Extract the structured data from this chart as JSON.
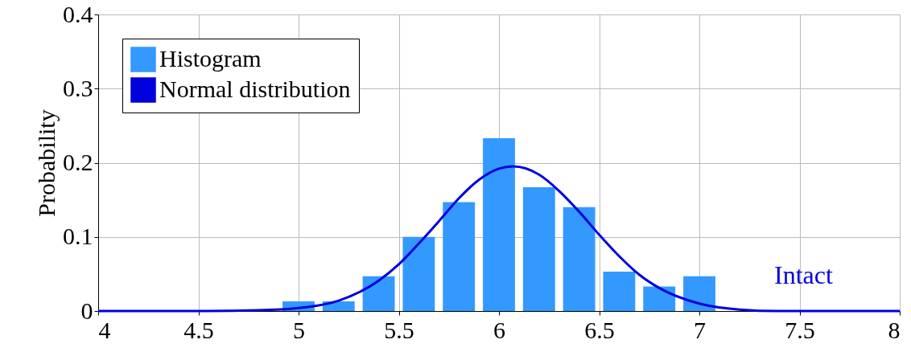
{
  "chart_data": {
    "type": "histogram",
    "ylabel": "Probability",
    "bins": [
      4.92,
      5.08,
      5.12,
      5.28,
      5.32,
      5.48,
      5.52,
      5.68,
      5.72,
      5.88,
      5.92,
      6.08,
      6.12,
      6.28,
      6.32,
      6.48,
      6.52,
      6.68,
      6.72,
      6.88,
      6.92,
      7.08
    ],
    "series": [
      {
        "name": "Histogram",
        "color": "#3399ff",
        "values": [
          0.013,
          null,
          0.013,
          null,
          0.047,
          null,
          0.1,
          null,
          0.147,
          null,
          0.233,
          null,
          0.167,
          null,
          0.14,
          null,
          0.053,
          null,
          0.033,
          null,
          0.047
        ]
      },
      {
        "name": "Normal distribution",
        "type": "line",
        "color": "#0000dd",
        "x": [
          4,
          4.5,
          4.8,
          5,
          5.2,
          5.4,
          5.5,
          5.6,
          5.7,
          5.8,
          5.9,
          6,
          6.07,
          6.2,
          6.3,
          6.4,
          6.5,
          6.6,
          6.7,
          6.8,
          7,
          7.2,
          7.4,
          7.7,
          8
        ],
        "values": [
          0,
          0,
          0.001,
          0.004,
          0.014,
          0.041,
          0.063,
          0.091,
          0.121,
          0.152,
          0.177,
          0.192,
          0.195,
          0.184,
          0.162,
          0.134,
          0.103,
          0.074,
          0.049,
          0.031,
          0.01,
          0.002,
          0,
          0,
          0
        ]
      }
    ],
    "annotations": [
      "Intact"
    ],
    "xlim": [
      4,
      8
    ],
    "ylim": [
      0,
      0.4
    ],
    "xticks": [
      4,
      4.5,
      5,
      5.5,
      6,
      6.5,
      7,
      7.5,
      8
    ],
    "yticks": [
      0,
      0.1,
      0.2,
      0.3,
      0.4
    ],
    "grid": true,
    "legend": "top left"
  }
}
